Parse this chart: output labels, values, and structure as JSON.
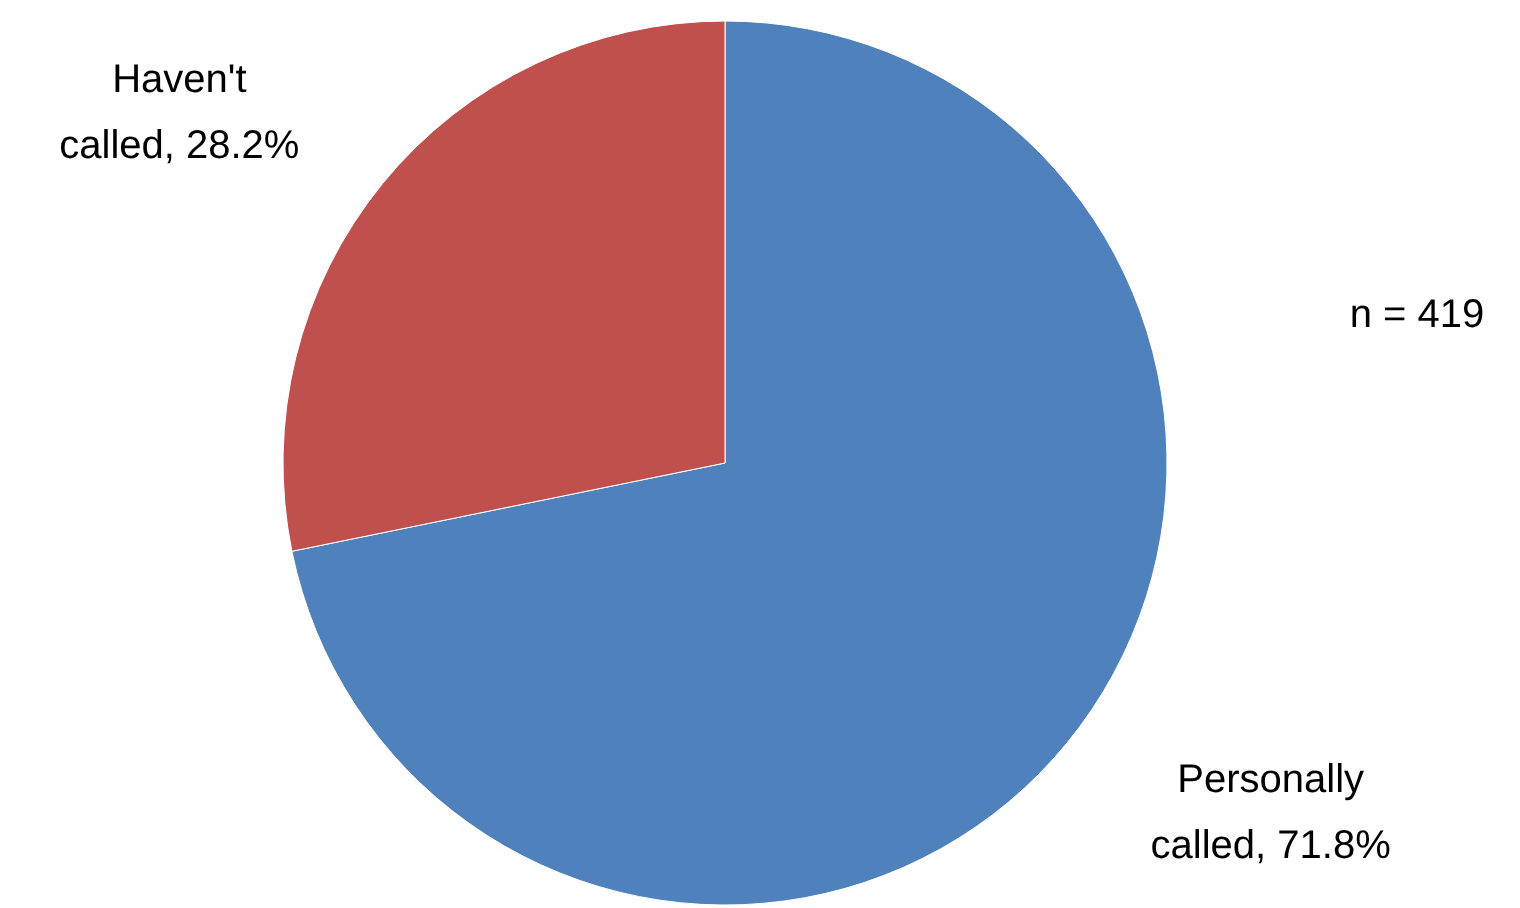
{
  "chart_data": {
    "type": "pie",
    "categories": [
      "Personally called",
      "Haven't called"
    ],
    "values": [
      71.8,
      28.2
    ],
    "colors": [
      "#4f81bd",
      "#c0504d"
    ],
    "value_labels": [
      "71.8%",
      "28.2%"
    ],
    "annotations": [
      "n = 419"
    ]
  }
}
